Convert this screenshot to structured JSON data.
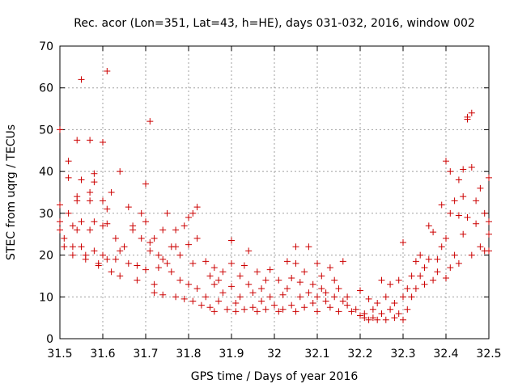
{
  "chart_data": {
    "type": "scatter",
    "title": "Rec. acor (Lon=351, Lat=43, h=HE), days 031-032, 2016, window 002",
    "xlabel": "GPS time / Days of year 2016",
    "ylabel": "STEC from uqrg / TECUs",
    "xlim": [
      31.5,
      32.5
    ],
    "ylim": [
      0,
      70
    ],
    "xticks": [
      31.5,
      31.6,
      31.7,
      31.8,
      31.9,
      32.0,
      32.1,
      32.2,
      32.3,
      32.4,
      32.5
    ],
    "xtick_labels": [
      "31.5",
      "31.6",
      "31.7",
      "31.8",
      "31.9",
      "32",
      "32.1",
      "32.2",
      "32.3",
      "32.4",
      "32.5"
    ],
    "yticks": [
      0,
      10,
      20,
      30,
      40,
      50,
      60,
      70
    ],
    "ytick_labels": [
      "0",
      "10",
      "20",
      "30",
      "40",
      "50",
      "60",
      "70"
    ],
    "grid": true,
    "marker_color": "#cc0000",
    "marker": "+",
    "series": [
      {
        "name": "STEC",
        "points": [
          [
            31.5,
            50
          ],
          [
            31.5,
            32
          ],
          [
            31.5,
            28
          ],
          [
            31.5,
            26
          ],
          [
            31.51,
            24
          ],
          [
            31.51,
            22
          ],
          [
            31.52,
            30
          ],
          [
            31.52,
            42.5
          ],
          [
            31.52,
            38.5
          ],
          [
            31.53,
            27
          ],
          [
            31.53,
            22
          ],
          [
            31.53,
            20
          ],
          [
            31.54,
            47.5
          ],
          [
            31.54,
            34
          ],
          [
            31.54,
            33
          ],
          [
            31.54,
            26
          ],
          [
            31.55,
            62
          ],
          [
            31.55,
            38
          ],
          [
            31.55,
            28
          ],
          [
            31.55,
            22
          ],
          [
            31.56,
            20
          ],
          [
            31.56,
            19
          ],
          [
            31.57,
            47.5
          ],
          [
            31.57,
            35
          ],
          [
            31.57,
            33
          ],
          [
            31.57,
            26
          ],
          [
            31.58,
            39.5
          ],
          [
            31.58,
            37.5
          ],
          [
            31.58,
            28
          ],
          [
            31.58,
            21
          ],
          [
            31.59,
            18
          ],
          [
            31.59,
            17.5
          ],
          [
            31.6,
            47
          ],
          [
            31.6,
            33
          ],
          [
            31.6,
            27
          ],
          [
            31.6,
            20
          ],
          [
            31.61,
            64
          ],
          [
            31.61,
            31
          ],
          [
            31.61,
            27.5
          ],
          [
            31.61,
            19
          ],
          [
            31.62,
            35
          ],
          [
            31.62,
            16
          ],
          [
            31.63,
            24
          ],
          [
            31.63,
            19
          ],
          [
            31.64,
            40
          ],
          [
            31.64,
            21
          ],
          [
            31.64,
            15
          ],
          [
            31.65,
            22
          ],
          [
            31.66,
            31.5
          ],
          [
            31.66,
            18
          ],
          [
            31.67,
            27
          ],
          [
            31.67,
            26
          ],
          [
            31.68,
            14
          ],
          [
            31.68,
            17.5
          ],
          [
            31.69,
            30
          ],
          [
            31.69,
            24
          ],
          [
            31.7,
            37
          ],
          [
            31.7,
            28
          ],
          [
            31.7,
            16.5
          ],
          [
            31.71,
            52
          ],
          [
            31.71,
            23
          ],
          [
            31.71,
            21
          ],
          [
            31.72,
            24
          ],
          [
            31.72,
            13
          ],
          [
            31.72,
            11
          ],
          [
            31.73,
            20
          ],
          [
            31.73,
            17
          ],
          [
            31.74,
            26
          ],
          [
            31.74,
            19
          ],
          [
            31.74,
            10.5
          ],
          [
            31.75,
            30
          ],
          [
            31.75,
            18
          ],
          [
            31.76,
            22
          ],
          [
            31.76,
            16
          ],
          [
            31.77,
            26
          ],
          [
            31.77,
            22
          ],
          [
            31.77,
            10
          ],
          [
            31.78,
            20
          ],
          [
            31.78,
            14
          ],
          [
            31.79,
            27
          ],
          [
            31.79,
            9.5
          ],
          [
            31.8,
            29
          ],
          [
            31.8,
            22.5
          ],
          [
            31.8,
            13
          ],
          [
            31.81,
            30
          ],
          [
            31.81,
            18
          ],
          [
            31.81,
            9
          ],
          [
            31.82,
            31.5
          ],
          [
            31.82,
            24
          ],
          [
            31.82,
            12
          ],
          [
            31.83,
            8
          ],
          [
            31.84,
            18.5
          ],
          [
            31.84,
            10
          ],
          [
            31.85,
            15
          ],
          [
            31.85,
            7.5
          ],
          [
            31.86,
            17
          ],
          [
            31.86,
            13
          ],
          [
            31.86,
            6.5
          ],
          [
            31.87,
            14
          ],
          [
            31.87,
            9
          ],
          [
            31.88,
            16
          ],
          [
            31.88,
            11
          ],
          [
            31.89,
            7
          ],
          [
            31.9,
            23.5
          ],
          [
            31.9,
            18
          ],
          [
            31.9,
            12.5
          ],
          [
            31.91,
            8.5
          ],
          [
            31.91,
            6.5
          ],
          [
            31.92,
            15
          ],
          [
            31.92,
            10
          ],
          [
            31.93,
            17.5
          ],
          [
            31.93,
            7
          ],
          [
            31.94,
            21
          ],
          [
            31.94,
            13
          ],
          [
            31.95,
            11
          ],
          [
            31.95,
            7.5
          ],
          [
            31.96,
            16
          ],
          [
            31.96,
            6.5
          ],
          [
            31.97,
            12
          ],
          [
            31.97,
            9
          ],
          [
            31.98,
            14
          ],
          [
            31.98,
            7
          ],
          [
            31.99,
            16.5
          ],
          [
            31.99,
            10
          ],
          [
            32.0,
            8
          ],
          [
            32.01,
            14
          ],
          [
            32.01,
            6.5
          ],
          [
            32.02,
            10.5
          ],
          [
            32.02,
            7
          ],
          [
            32.03,
            18.5
          ],
          [
            32.03,
            12
          ],
          [
            32.04,
            14.5
          ],
          [
            32.04,
            8
          ],
          [
            32.05,
            22
          ],
          [
            32.05,
            18
          ],
          [
            32.05,
            6.5
          ],
          [
            32.06,
            13.5
          ],
          [
            32.06,
            10
          ],
          [
            32.07,
            16
          ],
          [
            32.07,
            7.5
          ],
          [
            32.08,
            22
          ],
          [
            32.08,
            11
          ],
          [
            32.09,
            13
          ],
          [
            32.09,
            8.5
          ],
          [
            32.1,
            18
          ],
          [
            32.1,
            10
          ],
          [
            32.1,
            6.5
          ],
          [
            32.11,
            15
          ],
          [
            32.11,
            12
          ],
          [
            32.12,
            11
          ],
          [
            32.12,
            9
          ],
          [
            32.13,
            17
          ],
          [
            32.13,
            7.5
          ],
          [
            32.14,
            14
          ],
          [
            32.14,
            10
          ],
          [
            32.15,
            12
          ],
          [
            32.15,
            6.5
          ],
          [
            32.16,
            18.5
          ],
          [
            32.16,
            9
          ],
          [
            32.17,
            10
          ],
          [
            32.17,
            8
          ],
          [
            32.18,
            6.5
          ],
          [
            32.19,
            7
          ],
          [
            32.2,
            5.5
          ],
          [
            32.2,
            11.5
          ],
          [
            32.21,
            5
          ],
          [
            32.21,
            6
          ],
          [
            32.22,
            9.5
          ],
          [
            32.22,
            4.5
          ],
          [
            32.23,
            7
          ],
          [
            32.23,
            5
          ],
          [
            32.24,
            8.5
          ],
          [
            32.24,
            4.5
          ],
          [
            32.25,
            14
          ],
          [
            32.25,
            6
          ],
          [
            32.26,
            10
          ],
          [
            32.26,
            4.5
          ],
          [
            32.27,
            13
          ],
          [
            32.27,
            7
          ],
          [
            32.28,
            8.5
          ],
          [
            32.28,
            5
          ],
          [
            32.29,
            14
          ],
          [
            32.29,
            6
          ],
          [
            32.3,
            10
          ],
          [
            32.3,
            4.5
          ],
          [
            32.3,
            23
          ],
          [
            32.31,
            12
          ],
          [
            32.31,
            7
          ],
          [
            32.32,
            10
          ],
          [
            32.32,
            15
          ],
          [
            32.33,
            18.5
          ],
          [
            32.33,
            12
          ],
          [
            32.34,
            20
          ],
          [
            32.34,
            15
          ],
          [
            32.35,
            17
          ],
          [
            32.35,
            13
          ],
          [
            32.36,
            27
          ],
          [
            32.36,
            19
          ],
          [
            32.37,
            25.5
          ],
          [
            32.37,
            14
          ],
          [
            32.38,
            19
          ],
          [
            32.38,
            16
          ],
          [
            32.39,
            32
          ],
          [
            32.39,
            22
          ],
          [
            32.4,
            42.5
          ],
          [
            32.4,
            24
          ],
          [
            32.4,
            14.5
          ],
          [
            32.41,
            40
          ],
          [
            32.41,
            30
          ],
          [
            32.41,
            17
          ],
          [
            32.42,
            33
          ],
          [
            32.42,
            20
          ],
          [
            32.43,
            38
          ],
          [
            32.43,
            29.5
          ],
          [
            32.43,
            18
          ],
          [
            32.44,
            40.5
          ],
          [
            32.44,
            34
          ],
          [
            32.44,
            25
          ],
          [
            32.45,
            53
          ],
          [
            32.45,
            52.5
          ],
          [
            32.45,
            29
          ],
          [
            32.46,
            54
          ],
          [
            32.46,
            41
          ],
          [
            32.46,
            20
          ],
          [
            32.47,
            33
          ],
          [
            32.47,
            27.5
          ],
          [
            32.48,
            36
          ],
          [
            32.48,
            22
          ],
          [
            32.49,
            30
          ],
          [
            32.49,
            21
          ],
          [
            32.5,
            38.5
          ],
          [
            32.5,
            28
          ],
          [
            32.5,
            25
          ],
          [
            32.5,
            21
          ]
        ]
      }
    ]
  }
}
